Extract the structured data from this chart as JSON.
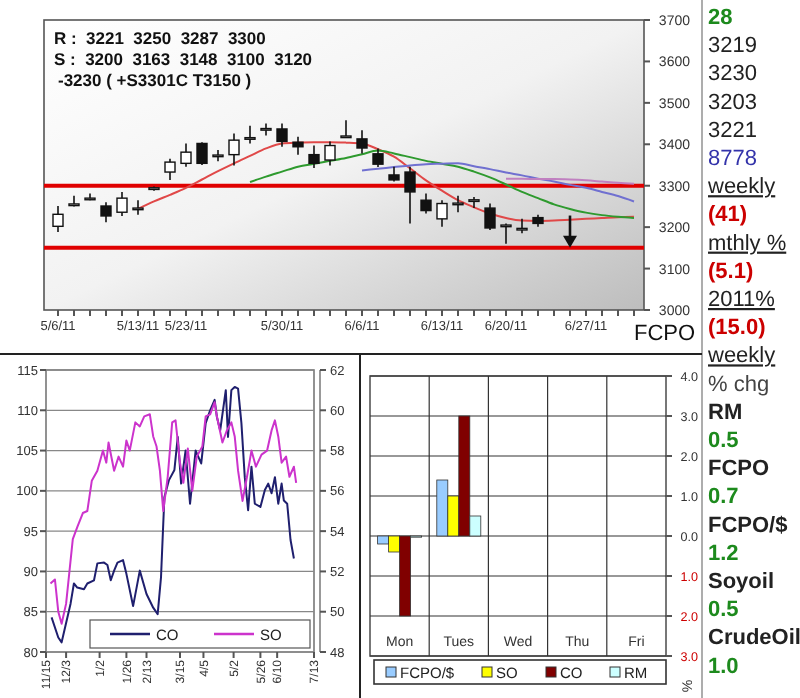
{
  "chart_data": [
    {
      "type": "candlestick",
      "ylabel": "FCPO",
      "annotations": [
        "R :  3221  3250  3287  3300",
        "S :  3200  3163  3148  3100  3120",
        "-3230 ( +S3301C T3150 )"
      ],
      "categories": [
        "5/6/11",
        null,
        null,
        null,
        null,
        "5/13/11",
        null,
        null,
        "5/23/11",
        null,
        null,
        null,
        null,
        null,
        "5/30/11",
        null,
        null,
        null,
        null,
        "6/6/11",
        null,
        null,
        null,
        null,
        "6/13/11",
        null,
        null,
        null,
        "6/20/11",
        null,
        null,
        null,
        null,
        "6/27/11",
        null,
        null,
        null
      ],
      "ohlc": [
        [
          3202,
          3251,
          3188,
          3231
        ],
        [
          3252,
          3276,
          3250,
          3256
        ],
        [
          3268,
          3281,
          3265,
          3270
        ],
        [
          3251,
          3260,
          3212,
          3227
        ],
        [
          3236,
          3285,
          3227,
          3270
        ],
        [
          3243,
          3265,
          3230,
          3246
        ],
        [
          3291,
          3298,
          3288,
          3295
        ],
        [
          3333,
          3365,
          3314,
          3357
        ],
        [
          3354,
          3402,
          3346,
          3381
        ],
        [
          3402,
          3405,
          3350,
          3354
        ],
        [
          3372,
          3386,
          3359,
          3374
        ],
        [
          3375,
          3426,
          3349,
          3410
        ],
        [
          3414,
          3445,
          3402,
          3416
        ],
        [
          3436,
          3450,
          3421,
          3438
        ],
        [
          3437,
          3450,
          3394,
          3407
        ],
        [
          3405,
          3418,
          3375,
          3394
        ],
        [
          3375,
          3397,
          3343,
          3354
        ],
        [
          3362,
          3407,
          3349,
          3397
        ],
        [
          3418,
          3458,
          3418,
          3420
        ],
        [
          3413,
          3434,
          3378,
          3391
        ],
        [
          3377,
          3390,
          3345,
          3352
        ],
        [
          3326,
          3346,
          3310,
          3314
        ],
        [
          3333,
          3346,
          3209,
          3285
        ],
        [
          3265,
          3281,
          3233,
          3240
        ],
        [
          3220,
          3265,
          3201,
          3257
        ],
        [
          3256,
          3276,
          3236,
          3258
        ],
        [
          3264,
          3273,
          3246,
          3266
        ],
        [
          3246,
          3257,
          3193,
          3198
        ],
        [
          3203,
          3209,
          3160,
          3205
        ],
        [
          3195,
          3220,
          3185,
          3197
        ],
        [
          3223,
          3230,
          3201,
          3209
        ],
        null,
        null,
        null,
        null,
        null,
        null
      ],
      "series": [
        {
          "type": "line",
          "color": "#e04848",
          "values": [
            null,
            null,
            null,
            null,
            null,
            3244,
            3262,
            3278,
            3295,
            3315,
            3335,
            3354,
            3372,
            3390,
            3402,
            3404,
            3405,
            3405,
            3404,
            3402,
            3388,
            3370,
            3342,
            3313,
            3288,
            3265,
            3248,
            3233,
            3222,
            3216,
            3215,
            3216,
            3218,
            3220,
            3222,
            3224,
            3225
          ]
        },
        {
          "type": "line",
          "color": "#2e9a2e",
          "values": [
            null,
            null,
            null,
            null,
            null,
            null,
            null,
            null,
            null,
            null,
            null,
            null,
            3309,
            3322,
            3334,
            3346,
            3353,
            3360,
            3367,
            3376,
            3385,
            3378,
            3369,
            3360,
            3353,
            3346,
            3334,
            3320,
            3303,
            3285,
            3270,
            3255,
            3244,
            3235,
            3229,
            3225,
            3222
          ]
        },
        {
          "type": "line",
          "color": "#7070d0",
          "values": [
            null,
            null,
            null,
            null,
            null,
            null,
            null,
            null,
            null,
            null,
            null,
            null,
            null,
            null,
            null,
            null,
            null,
            null,
            null,
            3337,
            3341,
            3345,
            3349,
            3352,
            3353,
            3354,
            3347,
            3340,
            3332,
            3325,
            3317,
            3310,
            3302,
            3295,
            3285,
            3275,
            3262
          ]
        },
        {
          "type": "line",
          "color": "#c080c0",
          "values": [
            null,
            null,
            null,
            null,
            null,
            null,
            null,
            null,
            null,
            null,
            null,
            null,
            null,
            null,
            null,
            null,
            null,
            null,
            null,
            null,
            null,
            null,
            null,
            null,
            null,
            null,
            null,
            null,
            3317,
            3317,
            3316,
            3316,
            3315,
            3313,
            3310,
            3307,
            3305
          ]
        }
      ],
      "ylim": [
        3000,
        3700
      ],
      "yticks": [
        3000,
        3100,
        3200,
        3300,
        3400,
        3500,
        3600,
        3700
      ],
      "ref_lines": [
        {
          "axis": "y",
          "value": 3300,
          "color": "#e00000"
        },
        {
          "axis": "y",
          "value": 3150,
          "color": "#e00000"
        }
      ]
    },
    {
      "type": "line",
      "xlim": [
        "2010-11-15",
        "2011-07-13"
      ],
      "xticks": [
        {
          "value": "2010-11-15",
          "label": "11/15"
        },
        {
          "value": "2010-12-03",
          "label": "12/3"
        },
        {
          "value": "2011-01-02",
          "label": "1/2"
        },
        {
          "value": "2011-01-26",
          "label": "1/26"
        },
        {
          "value": "2011-02-13",
          "label": "2/13"
        },
        {
          "value": "2011-03-15",
          "label": "3/15"
        },
        {
          "value": "2011-04-05",
          "label": "4/5"
        },
        {
          "value": "2011-05-02",
          "label": "5/2"
        },
        {
          "value": "2011-05-26",
          "label": "5/26"
        },
        {
          "value": "2011-06-10",
          "label": "6/10"
        },
        {
          "value": "2011-07-13",
          "label": "7/13"
        }
      ],
      "ylim": [
        80,
        115
      ],
      "yticks": [
        80,
        85,
        90,
        95,
        100,
        105,
        110,
        115
      ],
      "y2lim": [
        48,
        62
      ],
      "y2ticks": [
        48,
        50,
        52,
        54,
        56,
        58,
        60,
        62
      ],
      "grid": "y",
      "legend": "bottom",
      "series": [
        {
          "name": "CO",
          "color": "#1f1f6e",
          "x": [
            "2010-11-20",
            "2010-11-26",
            "2010-11-29",
            "2010-12-07",
            "2010-12-10",
            "2010-12-13",
            "2010-12-19",
            "2010-12-22",
            "2010-12-28",
            "2010-12-31",
            "2011-01-06",
            "2011-01-09",
            "2011-01-12",
            "2011-01-15",
            "2011-01-18",
            "2011-01-23",
            "2011-01-26",
            "2011-02-01",
            "2011-02-07",
            "2011-02-13",
            "2011-02-19",
            "2011-02-23",
            "2011-02-26",
            "2011-03-01",
            "2011-03-05",
            "2011-03-10",
            "2011-03-13",
            "2011-03-16",
            "2011-03-20",
            "2011-03-24",
            "2011-03-29",
            "2011-04-03",
            "2011-04-07",
            "2011-04-11",
            "2011-04-15",
            "2011-04-17",
            "2011-04-20",
            "2011-04-25",
            "2011-04-27",
            "2011-04-30",
            "2011-05-03",
            "2011-05-06",
            "2011-05-09",
            "2011-05-12",
            "2011-05-15",
            "2011-05-18",
            "2011-05-21",
            "2011-05-26",
            "2011-05-30",
            "2011-06-02",
            "2011-06-05",
            "2011-06-08",
            "2011-06-11",
            "2011-06-14",
            "2011-06-16",
            "2011-06-19",
            "2011-06-22",
            "2011-06-25"
          ],
          "values": [
            84.3,
            81.8,
            81.2,
            86,
            88.5,
            88,
            87.8,
            88.5,
            88.9,
            91,
            91.1,
            90.8,
            88.9,
            90.1,
            91.1,
            91.4,
            89.7,
            85.7,
            90.1,
            87.2,
            85.5,
            84.7,
            89.3,
            99.2,
            101.3,
            102.6,
            106.7,
            100.9,
            105,
            98.4,
            105,
            103.4,
            108.4,
            110,
            111.3,
            109.2,
            107.5,
            112.5,
            106.7,
            112.5,
            112.9,
            112.7,
            108.4,
            101.7,
            97.6,
            103,
            98.4,
            98,
            100.1,
            100.9,
            99.7,
            101.7,
            98.4,
            100.9,
            98.8,
            98.4,
            93.9,
            91.6
          ]
        },
        {
          "name": "SO",
          "color": "#cc33cc",
          "axis": "y2",
          "x": [
            "2010-11-19",
            "2010-11-23",
            "2010-11-26",
            "2010-11-29",
            "2010-12-03",
            "2010-12-06",
            "2010-12-09",
            "2010-12-13",
            "2010-12-18",
            "2010-12-22",
            "2010-12-26",
            "2010-12-31",
            "2011-01-05",
            "2011-01-08",
            "2011-01-10",
            "2011-01-15",
            "2011-01-19",
            "2011-01-23",
            "2011-01-26",
            "2011-01-29",
            "2011-02-03",
            "2011-02-07",
            "2011-02-11",
            "2011-02-16",
            "2011-02-19",
            "2011-02-22",
            "2011-02-25",
            "2011-02-28",
            "2011-03-04",
            "2011-03-08",
            "2011-03-11",
            "2011-03-15",
            "2011-03-18",
            "2011-03-22",
            "2011-03-26",
            "2011-03-30",
            "2011-04-04",
            "2011-04-07",
            "2011-04-11",
            "2011-04-15",
            "2011-04-17",
            "2011-04-22",
            "2011-04-26",
            "2011-04-30",
            "2011-05-03",
            "2011-05-06",
            "2011-05-10",
            "2011-05-14",
            "2011-05-18",
            "2011-05-22",
            "2011-05-27",
            "2011-06-01",
            "2011-06-05",
            "2011-06-08",
            "2011-06-11",
            "2011-06-14",
            "2011-06-18",
            "2011-06-21",
            "2011-06-25",
            "2011-06-27"
          ],
          "values": [
            51.4,
            51.6,
            50.0,
            49.4,
            50.4,
            52.0,
            53.6,
            54.2,
            54.9,
            55.0,
            56.5,
            57.0,
            58.0,
            57.4,
            58.4,
            57.0,
            57.7,
            57.2,
            58.5,
            58.0,
            59.4,
            59.2,
            59.7,
            59.8,
            58.7,
            58.2,
            57.0,
            55.0,
            56.7,
            59.4,
            59.5,
            57.4,
            56.4,
            58.1,
            56.0,
            57.7,
            58.2,
            59.7,
            59.8,
            60.4,
            59.7,
            58.4,
            59.0,
            59.4,
            58.7,
            57.0,
            55.5,
            56.7,
            58.0,
            57.2,
            57.8,
            58.0,
            59.0,
            59.5,
            58.7,
            57.4,
            57.7,
            56.7,
            57.2,
            56.4
          ]
        }
      ]
    },
    {
      "type": "bar",
      "ylabel": "%",
      "categories": [
        "Mon",
        "Tues",
        "Wed",
        "Thu",
        "Fri"
      ],
      "ylim": [
        -3,
        4
      ],
      "yticks": [
        {
          "value": 4,
          "label": "4.0"
        },
        {
          "value": 3,
          "label": "3.0"
        },
        {
          "value": 2,
          "label": "2.0"
        },
        {
          "value": 1,
          "label": "1.0"
        },
        {
          "value": 0,
          "label": "0.0"
        },
        {
          "value": -1,
          "label": "1.0"
        },
        {
          "value": -2,
          "label": "2.0"
        },
        {
          "value": -3,
          "label": "3.0"
        }
      ],
      "grid": true,
      "legend": "bottom",
      "series": [
        {
          "name": "FCPO/$",
          "color": "#99ccff",
          "values": [
            -0.2,
            1.4,
            null,
            null,
            null
          ]
        },
        {
          "name": "SO",
          "color": "#ffff00",
          "values": [
            -0.4,
            1.0,
            null,
            null,
            null
          ]
        },
        {
          "name": "CO",
          "color": "#800000",
          "values": [
            -2.0,
            3.0,
            null,
            null,
            null
          ]
        },
        {
          "name": "RM",
          "color": "#ccffff",
          "values": [
            0.0,
            0.5,
            null,
            null,
            null
          ]
        }
      ]
    },
    {
      "type": "other",
      "annotations": [
        "28",
        "3219",
        "3230",
        "3203",
        "3221",
        "8778",
        "weekly",
        "(41)",
        "mthly %",
        "(5.1)",
        "2011%",
        "(15.0)",
        "weekly",
        "% chg",
        "RM",
        "0.5",
        "FCPO",
        "0.7",
        "FCPO/$",
        "1.2",
        "Soyoil",
        "0.5",
        "CrudeOil",
        "1.0"
      ]
    }
  ]
}
